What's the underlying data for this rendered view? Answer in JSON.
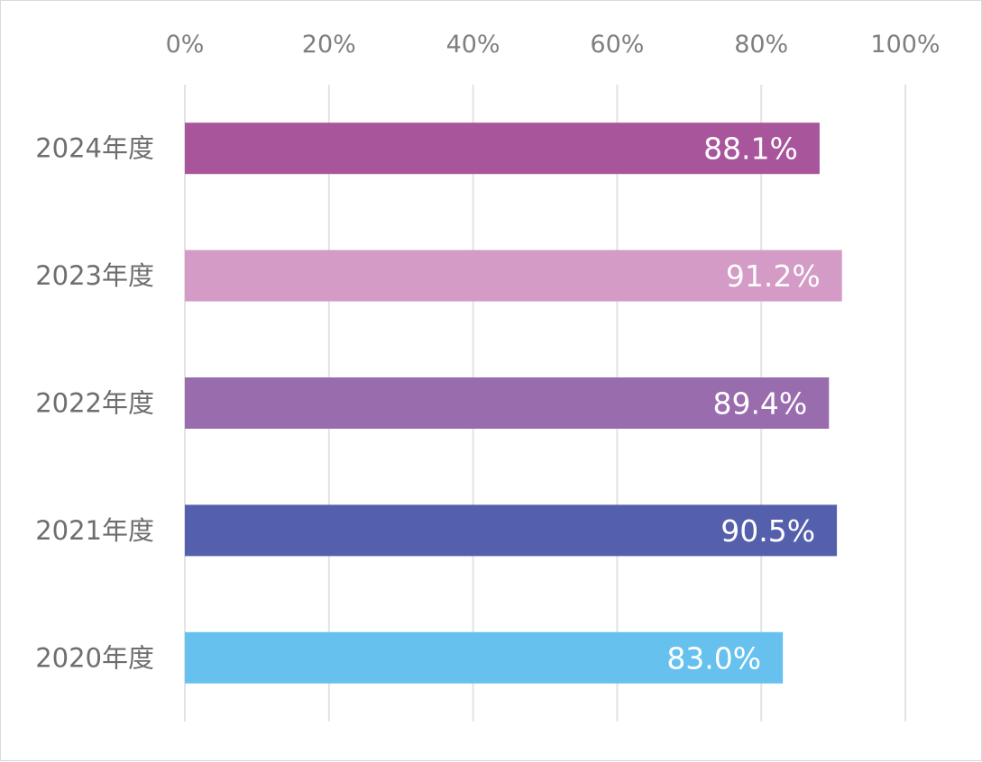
{
  "chart_data": {
    "type": "bar",
    "orientation": "horizontal",
    "categories": [
      "2024年度",
      "2023年度",
      "2022年度",
      "2021年度",
      "2020年度"
    ],
    "values": [
      88.1,
      91.2,
      89.4,
      90.5,
      83.0
    ],
    "data_labels": [
      "88.1%",
      "91.2%",
      "89.4%",
      "90.5%",
      "83.0%"
    ],
    "colors": [
      "#a9559c",
      "#d39bc6",
      "#996cad",
      "#5560ac",
      "#67c1ee"
    ],
    "xlim": [
      0,
      100
    ],
    "x_ticks": [
      0,
      20,
      40,
      60,
      80,
      100
    ],
    "x_tick_labels": [
      "0%",
      "20%",
      "40%",
      "60%",
      "80%",
      "100%"
    ],
    "x_axis_position": "top",
    "grid": true,
    "legend": "none"
  }
}
